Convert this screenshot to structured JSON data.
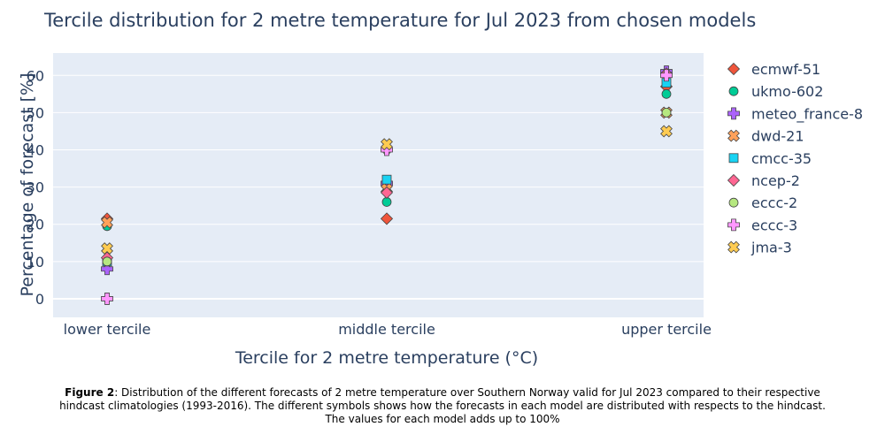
{
  "chart_data": {
    "type": "scatter",
    "title": "Tercile distribution for 2 metre temperature for Jul 2023 from chosen models",
    "xlabel": "Tercile for 2 metre temperature (°C)",
    "ylabel": "Percentage of forecast [%]",
    "categories": [
      "lower tercile",
      "middle tercile",
      "upper tercile"
    ],
    "ylim": [
      -5,
      66
    ],
    "yticks": [
      0,
      10,
      20,
      30,
      40,
      50,
      60
    ],
    "grid": true,
    "legend_position": "right",
    "series": [
      {
        "name": "ecmwf-51",
        "marker": "diamond",
        "color": "#EF553B",
        "values": [
          21.5,
          21.5,
          57
        ]
      },
      {
        "name": "ukmo-602",
        "marker": "circle",
        "color": "#00CC96",
        "values": [
          19.5,
          26,
          55
        ]
      },
      {
        "name": "meteo_france-8",
        "marker": "cross",
        "color": "#AB63FA",
        "values": [
          8,
          31,
          61
        ]
      },
      {
        "name": "dwd-21",
        "marker": "x",
        "color": "#FFA15A",
        "values": [
          20.5,
          29.5,
          50
        ]
      },
      {
        "name": "cmcc-35",
        "marker": "square",
        "color": "#19D3F3",
        "values": [
          10,
          32,
          58
        ]
      },
      {
        "name": "ncep-2",
        "marker": "diamond",
        "color": "#FF6692",
        "values": [
          11,
          28.5,
          60.5
        ]
      },
      {
        "name": "eccc-2",
        "marker": "circle",
        "color": "#B6E880",
        "values": [
          10,
          40,
          50
        ]
      },
      {
        "name": "eccc-3",
        "marker": "cross",
        "color": "#FF97FF",
        "values": [
          0,
          40,
          60
        ]
      },
      {
        "name": "jma-3",
        "marker": "x",
        "color": "#FECB52",
        "values": [
          13.5,
          41.5,
          45
        ]
      }
    ]
  },
  "caption": {
    "label": "Figure 2",
    "text": ": Distribution of the different forecasts of 2 metre temperature over Southern Norway valid for Jul 2023 compared to their respective hindcast climatologies (1993-2016). The different symbols shows how the forecasts in each model are distributed with respects to the hindcast. The values for each model adds up to 100%"
  }
}
